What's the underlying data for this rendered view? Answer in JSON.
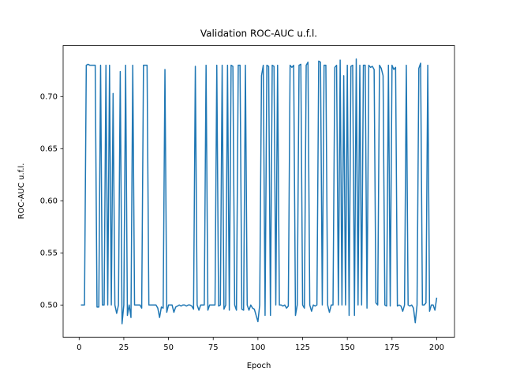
{
  "chart_data": {
    "type": "line",
    "title": "Validation ROC-AUC u.f.l.",
    "x_label": "Epoch",
    "y_label": "ROC-AUC u.f.l.",
    "x": [
      1,
      2,
      3,
      4,
      5,
      6,
      7,
      8,
      9,
      10,
      11,
      12,
      13,
      14,
      15,
      16,
      17,
      18,
      19,
      20,
      21,
      22,
      23,
      24,
      25,
      26,
      27,
      28,
      29,
      30,
      31,
      32,
      33,
      34,
      35,
      36,
      37,
      38,
      39,
      40,
      41,
      42,
      43,
      44,
      45,
      46,
      47,
      48,
      49,
      50,
      51,
      52,
      53,
      54,
      55,
      56,
      57,
      58,
      59,
      60,
      61,
      62,
      63,
      64,
      65,
      66,
      67,
      68,
      69,
      70,
      71,
      72,
      73,
      74,
      75,
      76,
      77,
      78,
      79,
      80,
      81,
      82,
      83,
      84,
      85,
      86,
      87,
      88,
      89,
      90,
      91,
      92,
      93,
      94,
      95,
      96,
      97,
      98,
      99,
      100,
      101,
      102,
      103,
      104,
      105,
      106,
      107,
      108,
      109,
      110,
      111,
      112,
      113,
      114,
      115,
      116,
      117,
      118,
      119,
      120,
      121,
      122,
      123,
      124,
      125,
      126,
      127,
      128,
      129,
      130,
      131,
      132,
      133,
      134,
      135,
      136,
      137,
      138,
      139,
      140,
      141,
      142,
      143,
      144,
      145,
      146,
      147,
      148,
      149,
      150,
      151,
      152,
      153,
      154,
      155,
      156,
      157,
      158,
      159,
      160,
      161,
      162,
      163,
      164,
      165,
      166,
      167,
      168,
      169,
      170,
      171,
      172,
      173,
      174,
      175,
      176,
      177,
      178,
      179,
      180,
      181,
      182,
      183,
      184,
      185,
      186,
      187,
      188,
      189,
      190,
      191,
      192,
      193,
      194,
      195,
      196,
      197,
      198,
      199,
      200
    ],
    "series": [
      {
        "color": "#1f77b4",
        "values": [
          0.5,
          0.5,
          0.5,
          0.73,
          0.731,
          0.73,
          0.73,
          0.73,
          0.73,
          0.498,
          0.498,
          0.73,
          0.5,
          0.5,
          0.73,
          0.5,
          0.73,
          0.5,
          0.703,
          0.5,
          0.492,
          0.5,
          0.724,
          0.482,
          0.5,
          0.73,
          0.49,
          0.5,
          0.488,
          0.73,
          0.5,
          0.5,
          0.5,
          0.5,
          0.497,
          0.73,
          0.73,
          0.73,
          0.5,
          0.5,
          0.5,
          0.5,
          0.5,
          0.497,
          0.488,
          0.498,
          0.497,
          0.726,
          0.493,
          0.5,
          0.5,
          0.5,
          0.493,
          0.498,
          0.499,
          0.5,
          0.499,
          0.5,
          0.5,
          0.499,
          0.5,
          0.5,
          0.499,
          0.496,
          0.729,
          0.5,
          0.495,
          0.5,
          0.5,
          0.5,
          0.73,
          0.495,
          0.5,
          0.5,
          0.5,
          0.5,
          0.73,
          0.499,
          0.5,
          0.73,
          0.496,
          0.5,
          0.73,
          0.495,
          0.73,
          0.729,
          0.5,
          0.495,
          0.73,
          0.73,
          0.496,
          0.495,
          0.73,
          0.5,
          0.495,
          0.5,
          0.497,
          0.496,
          0.49,
          0.484,
          0.5,
          0.72,
          0.73,
          0.49,
          0.73,
          0.729,
          0.49,
          0.73,
          0.729,
          0.5,
          0.73,
          0.5,
          0.5,
          0.499,
          0.5,
          0.497,
          0.499,
          0.73,
          0.728,
          0.73,
          0.49,
          0.5,
          0.73,
          0.731,
          0.5,
          0.497,
          0.73,
          0.733,
          0.5,
          0.494,
          0.5,
          0.499,
          0.5,
          0.734,
          0.733,
          0.5,
          0.73,
          0.73,
          0.5,
          0.493,
          0.5,
          0.5,
          0.728,
          0.73,
          0.5,
          0.735,
          0.5,
          0.72,
          0.5,
          0.73,
          0.49,
          0.729,
          0.73,
          0.49,
          0.736,
          0.5,
          0.73,
          0.5,
          0.73,
          0.73,
          0.497,
          0.73,
          0.728,
          0.729,
          0.726,
          0.502,
          0.5,
          0.73,
          0.727,
          0.72,
          0.5,
          0.499,
          0.73,
          0.499,
          0.73,
          0.726,
          0.728,
          0.499,
          0.5,
          0.499,
          0.494,
          0.5,
          0.73,
          0.5,
          0.499,
          0.5,
          0.497,
          0.483,
          0.5,
          0.727,
          0.732,
          0.5,
          0.5,
          0.502,
          0.73,
          0.494,
          0.5,
          0.5,
          0.495,
          0.507
        ]
      }
    ],
    "xlim": [
      -8.95,
      209.95
    ],
    "ylim": [
      0.469,
      0.749
    ],
    "xticks": [
      0,
      25,
      50,
      75,
      100,
      125,
      150,
      175,
      200
    ],
    "yticks": [
      {
        "value": 0.5,
        "label": "0.50"
      },
      {
        "value": 0.55,
        "label": "0.55"
      },
      {
        "value": 0.6,
        "label": "0.60"
      },
      {
        "value": 0.65,
        "label": "0.65"
      },
      {
        "value": 0.7,
        "label": "0.70"
      }
    ],
    "grid": false
  }
}
